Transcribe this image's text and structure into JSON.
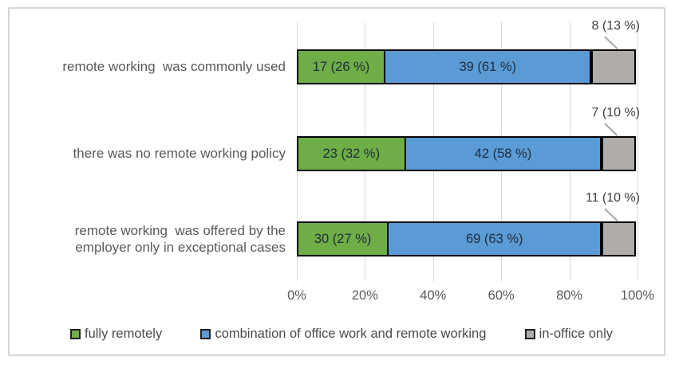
{
  "chart_data": {
    "type": "bar",
    "orientation": "horizontal",
    "stacked": true,
    "title": "",
    "categories": [
      "remote working  was commonly used",
      "there was no remote working policy",
      "remote working  was offered by the\nemployer only in exceptional cases"
    ],
    "series": [
      {
        "key": "fully-remotely",
        "name": "fully remotely",
        "color": "#6FAD47",
        "counts": [
          17,
          23,
          30
        ],
        "percents": [
          26,
          32,
          27
        ],
        "labels": [
          "17 (26 %)",
          "23 (32 %)",
          "30 (27 %)"
        ],
        "label_placement": "inside"
      },
      {
        "key": "combination-office-remote",
        "name": "combination of office work and remote working",
        "color": "#5B9BD5",
        "counts": [
          39,
          42,
          69
        ],
        "percents": [
          61,
          58,
          63
        ],
        "labels": [
          "39 (61 %)",
          "42 (58 %)",
          "69 (63 %)"
        ],
        "label_placement": "inside"
      },
      {
        "key": "in-office-only",
        "name": "in-office only",
        "color": "#AFACA9",
        "counts": [
          8,
          7,
          11
        ],
        "percents": [
          13,
          10,
          10
        ],
        "labels": [
          "8 (13 %)",
          "7 (10 %)",
          "11 (10 %)"
        ],
        "label_placement": "callout"
      }
    ],
    "x_axis": {
      "min": 0,
      "max": 100,
      "ticks": [
        "0%",
        "20%",
        "40%",
        "60%",
        "80%",
        "100%"
      ]
    },
    "grid": true,
    "legend_position": "bottom",
    "legend": [
      {
        "label": "fully remotely",
        "color": "#6FAD47"
      },
      {
        "label": "combination of office work and remote working",
        "color": "#5B9BD5"
      },
      {
        "label": "in-office only",
        "color": "#AFACA9"
      }
    ]
  },
  "colors": {
    "gridline": "#D9D9D9",
    "bar_border": "#000000",
    "axis_text": "#595959",
    "category_text": "#595959",
    "bar_label_text": "#1F2B3D",
    "callout_text": "#3F3F3F",
    "leader_line": "#A6A6A6",
    "card_border": "#D6D4D4",
    "legend_text": "#4A4A4A",
    "background": "#FFFFFF"
  }
}
